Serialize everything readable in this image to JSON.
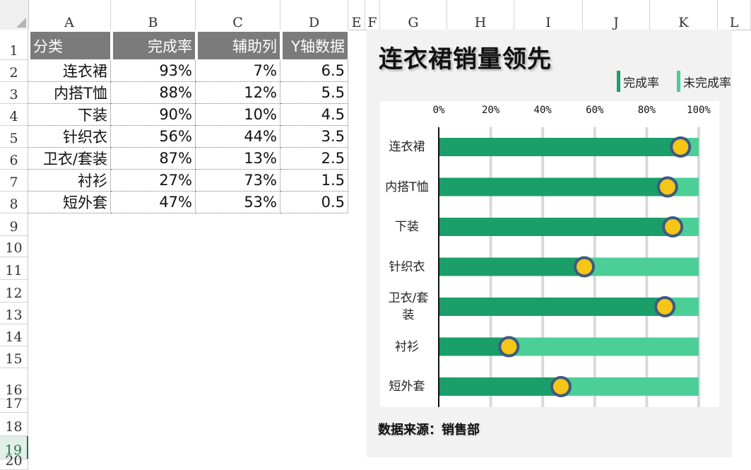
{
  "sheet": {
    "columns": [
      {
        "label": "A"
      },
      {
        "label": "B"
      },
      {
        "label": "C"
      },
      {
        "label": "D"
      },
      {
        "label": "E"
      },
      {
        "label": "F"
      },
      {
        "label": "G"
      },
      {
        "label": "H"
      },
      {
        "label": "I"
      },
      {
        "label": "J"
      },
      {
        "label": "K"
      },
      {
        "label": "L"
      }
    ],
    "rows": [
      "1",
      "2",
      "3",
      "4",
      "5",
      "6",
      "7",
      "8",
      "9",
      "10",
      "11",
      "12",
      "13",
      "14",
      "15",
      "16",
      "17",
      "18",
      "19",
      "20"
    ],
    "selected_row": "19",
    "table_headers": [
      "分类",
      "完成率",
      "辅助列",
      "Y轴数据"
    ],
    "table_rows": [
      [
        "连衣裙",
        "93%",
        "7%",
        "6.5"
      ],
      [
        "内搭T恤",
        "88%",
        "12%",
        "5.5"
      ],
      [
        "下装",
        "90%",
        "10%",
        "4.5"
      ],
      [
        "针织衣",
        "56%",
        "44%",
        "3.5"
      ],
      [
        "卫衣/套装",
        "87%",
        "13%",
        "2.5"
      ],
      [
        "衬衫",
        "27%",
        "73%",
        "1.5"
      ],
      [
        "短外套",
        "47%",
        "53%",
        "0.5"
      ]
    ]
  },
  "chart_data": {
    "type": "bar",
    "orientation": "horizontal",
    "stacked": true,
    "title": "连衣裙销量领先",
    "source_note": "数据来源：销售部",
    "categories": [
      "连衣裙",
      "内搭T恤",
      "下装",
      "针织衣",
      "卫衣/套装",
      "衬衫",
      "短外套"
    ],
    "series": [
      {
        "name": "完成率",
        "values": [
          93,
          88,
          90,
          56,
          87,
          27,
          47
        ],
        "color": "#1a9e6a"
      },
      {
        "name": "未完成率",
        "values": [
          7,
          12,
          10,
          44,
          13,
          73,
          53
        ],
        "color": "#4ccf97"
      }
    ],
    "markers": {
      "values": [
        93,
        88,
        90,
        56,
        87,
        27,
        47
      ],
      "fill": "#f5c518",
      "stroke": "#3d5a80"
    },
    "x_ticks": [
      "0%",
      "20%",
      "40%",
      "60%",
      "80%",
      "100%"
    ],
    "xlim": [
      0,
      100
    ],
    "grid": true,
    "legend_position": "top-right"
  }
}
